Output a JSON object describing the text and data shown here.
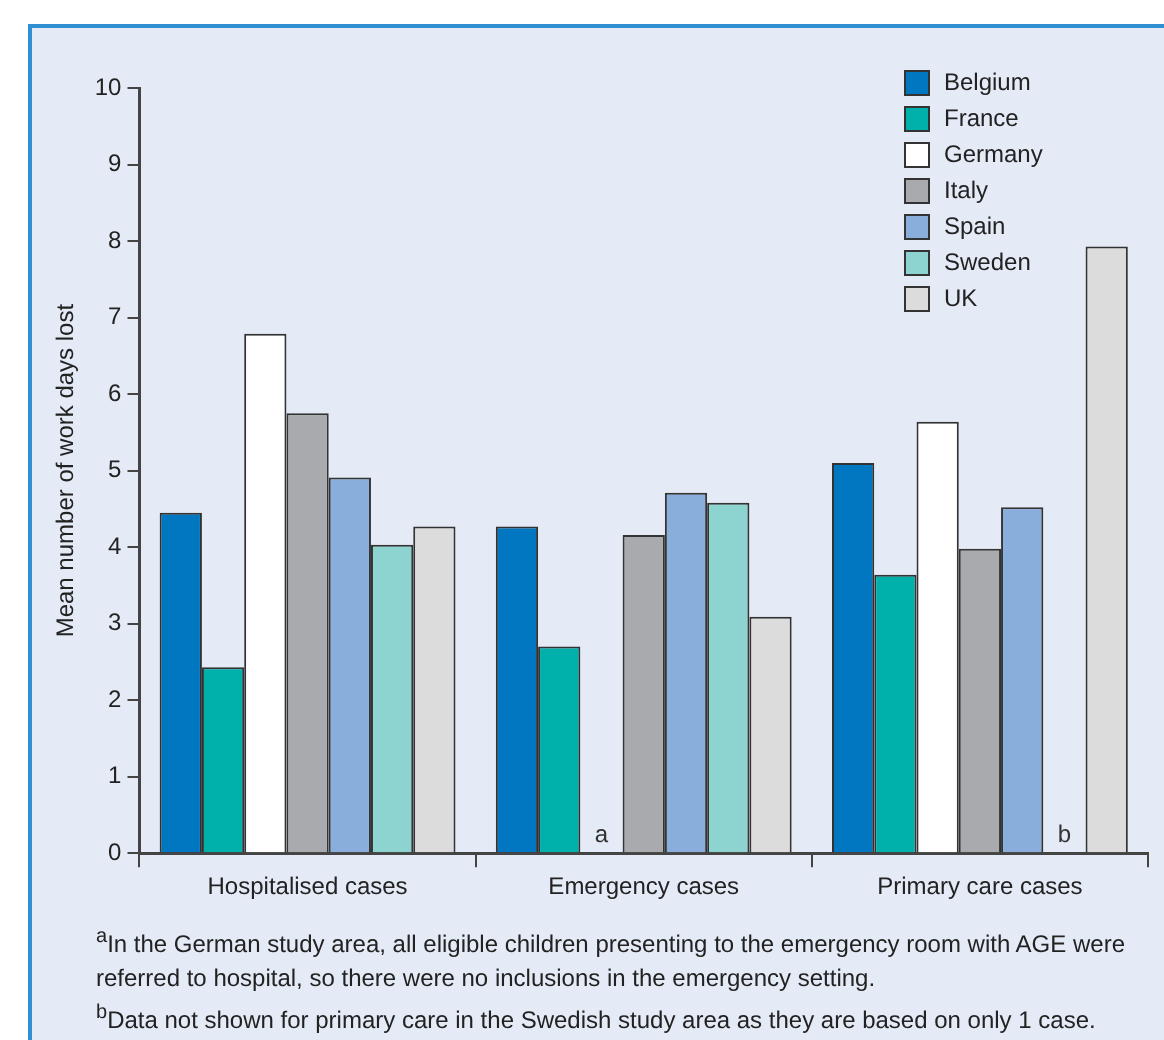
{
  "chart_data": {
    "type": "bar",
    "ylabel": "Mean number of work days lost",
    "categories": [
      "Hospitalised cases",
      "Emergency cases",
      "Primary care cases"
    ],
    "series": [
      {
        "name": "Belgium",
        "color": "#0077c0",
        "values": [
          4.45,
          4.27,
          5.1
        ]
      },
      {
        "name": "France",
        "color": "#00b0aa",
        "values": [
          2.43,
          2.7,
          3.64
        ]
      },
      {
        "name": "Germany",
        "color": "#ffffff",
        "values": [
          6.79,
          null,
          5.64
        ]
      },
      {
        "name": "Italy",
        "color": "#a9aaad",
        "values": [
          5.75,
          4.16,
          3.98
        ]
      },
      {
        "name": "Spain",
        "color": "#8aaedc",
        "values": [
          4.91,
          4.71,
          4.52
        ]
      },
      {
        "name": "Sweden",
        "color": "#8dd3d0",
        "values": [
          4.03,
          4.58,
          null
        ]
      },
      {
        "name": "UK",
        "color": "#dcdcdc",
        "values": [
          4.27,
          3.09,
          7.93
        ]
      }
    ],
    "ylim": [
      0,
      10
    ],
    "yticks": [
      0,
      1,
      2,
      3,
      4,
      5,
      6,
      7,
      8,
      9,
      10
    ],
    "grid": false,
    "legend": "top right",
    "annotations": [
      "a",
      "b",
      "$^{a}$In the German study area, all eligible children presenting to the emergency room with AGE were referred to hospital, so there were no inclusions in the emergency setting.",
      "$^{b}$Data not shown for primary care in the Swedish study area as they are based on only 1 case."
    ]
  }
}
